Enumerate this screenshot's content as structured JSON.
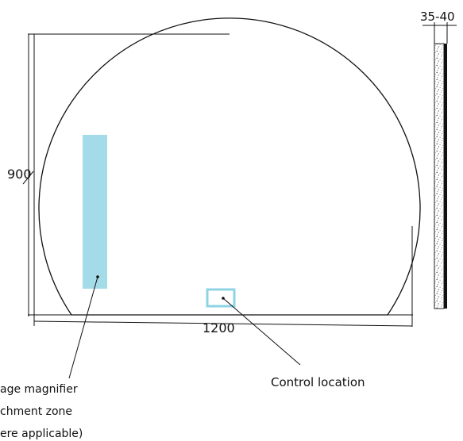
{
  "dimensions": {
    "height": "900",
    "width": "1200",
    "depth": "35-40"
  },
  "callouts": {
    "magnifier": {
      "line1": "age magnifier",
      "line2": "chment zone",
      "line3": "ere applicable)"
    },
    "control": "Control location"
  },
  "colors": {
    "magnifier_zone": "#a3dbe8",
    "control_box": "#8fd3e3",
    "outline": "#111111",
    "frame_border": "#222222"
  }
}
